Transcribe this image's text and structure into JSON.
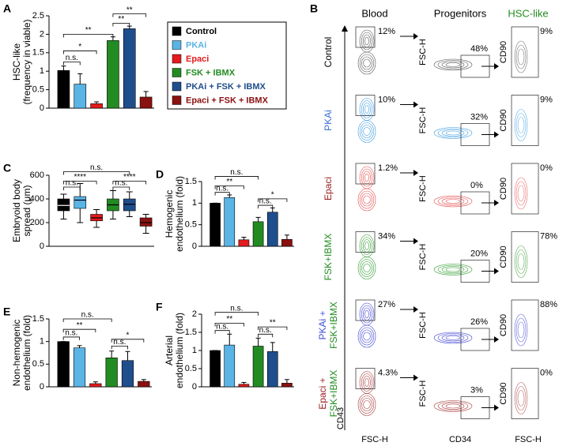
{
  "chart_data": [
    {
      "panel": "A",
      "type": "bar",
      "ylabel": [
        "HSC-like",
        "(frequency in viable)"
      ],
      "categories": [
        "Control",
        "PKAi",
        "Epaci",
        "FSK + IBMX",
        "PKAi + FSK + IBMX",
        "Epaci + FSK + IBMX"
      ],
      "colors": [
        "#000000",
        "#5ab4e5",
        "#e41a1c",
        "#228b22",
        "#1f4e8c",
        "#8b1010"
      ],
      "values": [
        1.02,
        0.65,
        0.12,
        1.83,
        2.15,
        0.3
      ],
      "errors": [
        0.12,
        0.28,
        0.05,
        0.1,
        0.07,
        0.15
      ],
      "ylim": [
        0,
        2.5
      ],
      "yticks": [
        0,
        0.5,
        1,
        1.5,
        2,
        2.5
      ],
      "annotations": [
        "n.s.",
        "**",
        "*",
        "**",
        "**"
      ]
    },
    {
      "panel": "C",
      "type": "box",
      "ylabel": [
        "Embryoid body",
        "spread (μm)"
      ],
      "colors": [
        "#000000",
        "#5ab4e5",
        "#e41a1c",
        "#228b22",
        "#1f4e8c",
        "#8b1010"
      ],
      "stats": [
        [
          230,
          300,
          345,
          400,
          440
        ],
        [
          200,
          320,
          390,
          420,
          530
        ],
        [
          160,
          215,
          240,
          270,
          310
        ],
        [
          230,
          300,
          350,
          400,
          470
        ],
        [
          250,
          300,
          355,
          400,
          460
        ],
        [
          110,
          170,
          200,
          240,
          270
        ]
      ],
      "ylim": [
        0,
        600
      ],
      "yticks": [
        0,
        200,
        400,
        600
      ],
      "annotations": [
        "n.s.",
        "****",
        "n.s.",
        "n.s.",
        "****"
      ]
    },
    {
      "panel": "D",
      "type": "bar",
      "ylabel": [
        "Hemogenic",
        "endothelium (fold)"
      ],
      "colors": [
        "#000000",
        "#5ab4e5",
        "#e41a1c",
        "#228b22",
        "#1f4e8c",
        "#8b1010"
      ],
      "values": [
        1.0,
        1.13,
        0.15,
        0.57,
        0.79,
        0.16
      ],
      "errors": [
        0,
        0.06,
        0.06,
        0.1,
        0.1,
        0.1
      ],
      "ylim": [
        0,
        1.5
      ],
      "yticks": [
        0,
        0.5,
        1,
        1.5
      ],
      "annotations": [
        "n.s.",
        "**",
        "n.s.",
        "n.s.",
        "*"
      ]
    },
    {
      "panel": "E",
      "type": "bar",
      "ylabel": [
        "Non-hemogenic",
        "endothelium (fold)"
      ],
      "colors": [
        "#000000",
        "#5ab4e5",
        "#e41a1c",
        "#228b22",
        "#1f4e8c",
        "#8b1010"
      ],
      "values": [
        1.0,
        0.86,
        0.07,
        0.64,
        0.58,
        0.12
      ],
      "errors": [
        0,
        0.05,
        0.04,
        0.15,
        0.2,
        0.04
      ],
      "ylim": [
        0,
        1.5
      ],
      "yticks": [
        0,
        0.5,
        1,
        1.5
      ],
      "annotations": [
        "n.s.",
        "**",
        "n.s.",
        "n.s.",
        "*"
      ]
    },
    {
      "panel": "F",
      "type": "bar",
      "ylabel": [
        "Arterial",
        "endothelium (fold)"
      ],
      "colors": [
        "#000000",
        "#5ab4e5",
        "#e41a1c",
        "#228b22",
        "#1f4e8c",
        "#8b1010"
      ],
      "values": [
        1.0,
        1.15,
        0.07,
        1.12,
        0.97,
        0.1
      ],
      "errors": [
        0,
        0.3,
        0.05,
        0.22,
        0.25,
        0.1
      ],
      "ylim": [
        0,
        2
      ],
      "yticks": [
        0,
        0.5,
        1,
        1.5,
        2
      ],
      "annotations": [
        "n.s.",
        "**",
        "n.s.",
        "n.s.",
        "**"
      ]
    }
  ],
  "flow": {
    "panel": "B",
    "columns": [
      {
        "text": "Blood",
        "color": "#000000"
      },
      {
        "text": "Progenitors",
        "color": "#000000"
      },
      {
        "text": "HSC-like",
        "color": "#228b22"
      }
    ],
    "y_labels": [
      "CD43",
      "FSC-H",
      "CD90"
    ],
    "x_labels": [
      "FSC-H",
      "CD34",
      "FSC-H"
    ],
    "rows": [
      {
        "label": [
          {
            "text": "Control",
            "color": "#000000"
          }
        ],
        "color": "#555555",
        "gates": [
          "12%",
          "48%",
          "9%"
        ]
      },
      {
        "label": [
          {
            "text": "PKAi",
            "color": "#3b6fd6"
          }
        ],
        "color": "#3a9be0",
        "gates": [
          "10%",
          "32%",
          "9%"
        ]
      },
      {
        "label": [
          {
            "text": "Epaci",
            "color": "#9b2020"
          }
        ],
        "color": "#e84a4a",
        "gates": [
          "1.2%",
          "0%",
          "0%"
        ]
      },
      {
        "label": [
          {
            "text": "FSK+IBMX",
            "color": "#228b22"
          }
        ],
        "color": "#2f9a2f",
        "gates": [
          "34%",
          "20%",
          "78%"
        ]
      },
      {
        "label": [
          {
            "text": "PKAi +",
            "color": "#3b4fd6"
          },
          {
            "text": "FSK+IBMX",
            "color": "#228b22"
          }
        ],
        "color": "#3a3fd0",
        "gates": [
          "27%",
          "26%",
          "88%"
        ]
      },
      {
        "label": [
          {
            "text": "Epaci +",
            "color": "#9b2020"
          },
          {
            "text": "FSK+IBMX",
            "color": "#228b22"
          }
        ],
        "color": "#a83a3a",
        "gates": [
          "4.3%",
          "3%",
          "0%"
        ]
      }
    ]
  }
}
